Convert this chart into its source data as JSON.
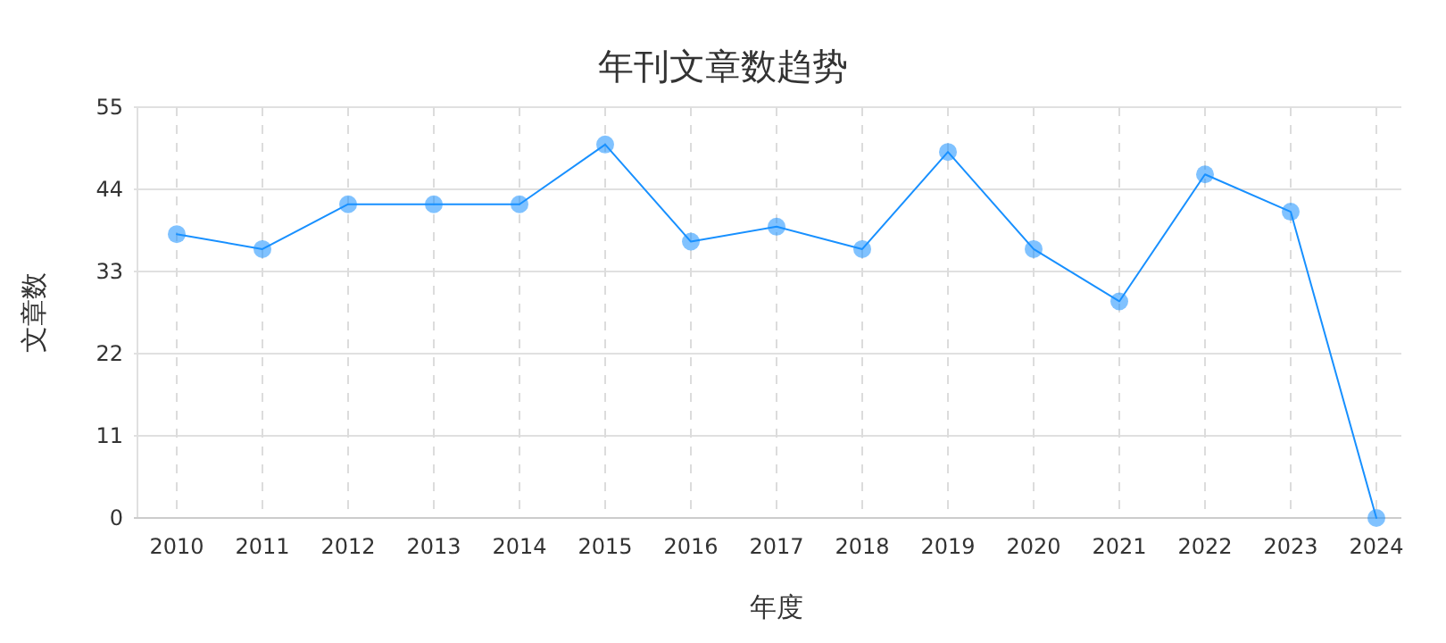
{
  "chart_data": {
    "type": "line",
    "title": "年刊文章数趋势",
    "xlabel": "年度",
    "ylabel": "文章数",
    "categories": [
      "2010",
      "2011",
      "2012",
      "2013",
      "2014",
      "2015",
      "2016",
      "2017",
      "2018",
      "2019",
      "2020",
      "2021",
      "2022",
      "2023",
      "2024"
    ],
    "series": [
      {
        "color": "#1890ff",
        "values": [
          38,
          36,
          42,
          42,
          42,
          50,
          37,
          39,
          36,
          49,
          36,
          29,
          46,
          41,
          0
        ]
      }
    ],
    "ylim": [
      0,
      55
    ],
    "yticks": [
      0,
      11,
      22,
      33,
      44,
      55
    ],
    "grid": true,
    "marker": "circle",
    "line_style": "solid"
  }
}
